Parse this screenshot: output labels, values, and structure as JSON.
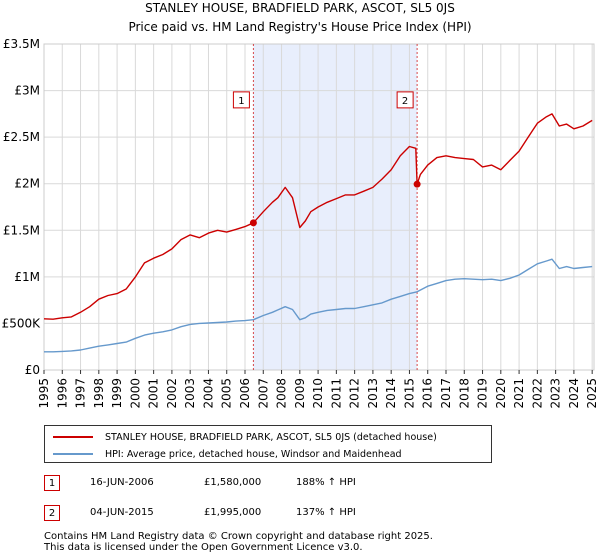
{
  "chart_data": {
    "type": "line",
    "title": "STANLEY HOUSE, BRADFIELD PARK, ASCOT, SL5 0JS",
    "subtitle": "Price paid vs. HM Land Registry's House Price Index (HPI)",
    "xlim": [
      1995,
      2025.1
    ],
    "ylim": [
      0,
      3500000
    ],
    "y_ticks": [
      {
        "value": 0,
        "label": "£0"
      },
      {
        "value": 500000,
        "label": "£500K"
      },
      {
        "value": 1000000,
        "label": "£1M"
      },
      {
        "value": 1500000,
        "label": "£1.5M"
      },
      {
        "value": 2000000,
        "label": "£2M"
      },
      {
        "value": 2500000,
        "label": "£2.5M"
      },
      {
        "value": 3000000,
        "label": "£3M"
      },
      {
        "value": 3500000,
        "label": "£3.5M"
      }
    ],
    "x_ticks": [
      "1995",
      "1996",
      "1997",
      "1998",
      "1999",
      "2000",
      "2001",
      "2002",
      "2003",
      "2004",
      "2005",
      "2006",
      "2007",
      "2008",
      "2009",
      "2010",
      "2011",
      "2012",
      "2013",
      "2014",
      "2015",
      "2016",
      "2017",
      "2018",
      "2019",
      "2020",
      "2021",
      "2022",
      "2023",
      "2024",
      "2025"
    ],
    "shaded_region": [
      2006.46,
      2015.42
    ],
    "series": [
      {
        "name": "STANLEY HOUSE, BRADFIELD PARK, ASCOT, SL5 0JS (detached house)",
        "color": "#cc0000",
        "x": [
          1995.0,
          1995.5,
          1996.0,
          1996.5,
          1997.0,
          1997.5,
          1998.0,
          1998.5,
          1999.0,
          1999.5,
          2000.0,
          2000.5,
          2001.0,
          2001.5,
          2002.0,
          2002.5,
          2003.0,
          2003.5,
          2004.0,
          2004.5,
          2005.0,
          2005.5,
          2006.0,
          2006.46,
          2007.0,
          2007.5,
          2007.8,
          2008.2,
          2008.6,
          2009.0,
          2009.3,
          2009.6,
          2010.0,
          2010.5,
          2011.0,
          2011.5,
          2012.0,
          2012.5,
          2013.0,
          2013.5,
          2014.0,
          2014.5,
          2015.0,
          2015.35,
          2015.42,
          2015.6,
          2016.0,
          2016.5,
          2017.0,
          2017.5,
          2018.0,
          2018.5,
          2019.0,
          2019.5,
          2020.0,
          2020.5,
          2021.0,
          2021.5,
          2022.0,
          2022.5,
          2022.8,
          2023.2,
          2023.6,
          2024.0,
          2024.5,
          2025.0
        ],
        "values": [
          550000,
          545000,
          560000,
          570000,
          620000,
          680000,
          760000,
          800000,
          820000,
          870000,
          1000000,
          1150000,
          1200000,
          1240000,
          1300000,
          1400000,
          1450000,
          1420000,
          1470000,
          1500000,
          1480000,
          1510000,
          1540000,
          1580000,
          1700000,
          1800000,
          1850000,
          1960000,
          1850000,
          1530000,
          1600000,
          1700000,
          1750000,
          1800000,
          1840000,
          1880000,
          1880000,
          1920000,
          1960000,
          2050000,
          2150000,
          2300000,
          2400000,
          2380000,
          1995000,
          2100000,
          2200000,
          2280000,
          2300000,
          2280000,
          2270000,
          2260000,
          2180000,
          2200000,
          2150000,
          2250000,
          2350000,
          2500000,
          2650000,
          2720000,
          2750000,
          2620000,
          2640000,
          2590000,
          2620000,
          2680000
        ]
      },
      {
        "name": "HPI: Average price, detached house, Windsor and Maidenhead",
        "color": "#6699cc",
        "x": [
          1995.0,
          1995.5,
          1996.0,
          1996.5,
          1997.0,
          1997.5,
          1998.0,
          1998.5,
          1999.0,
          1999.5,
          2000.0,
          2000.5,
          2001.0,
          2001.5,
          2002.0,
          2002.5,
          2003.0,
          2003.5,
          2004.0,
          2004.5,
          2005.0,
          2005.5,
          2006.0,
          2006.46,
          2007.0,
          2007.5,
          2007.8,
          2008.2,
          2008.6,
          2009.0,
          2009.3,
          2009.6,
          2010.0,
          2010.5,
          2011.0,
          2011.5,
          2012.0,
          2012.5,
          2013.0,
          2013.5,
          2014.0,
          2014.5,
          2015.0,
          2015.42,
          2016.0,
          2016.5,
          2017.0,
          2017.5,
          2018.0,
          2018.5,
          2019.0,
          2019.5,
          2020.0,
          2020.5,
          2021.0,
          2021.5,
          2022.0,
          2022.5,
          2022.8,
          2023.2,
          2023.6,
          2024.0,
          2024.5,
          2025.0
        ],
        "values": [
          195000,
          195000,
          200000,
          205000,
          215000,
          235000,
          255000,
          270000,
          285000,
          300000,
          340000,
          375000,
          395000,
          410000,
          430000,
          465000,
          490000,
          500000,
          505000,
          510000,
          515000,
          525000,
          530000,
          540000,
          585000,
          620000,
          645000,
          680000,
          650000,
          540000,
          560000,
          600000,
          620000,
          640000,
          650000,
          660000,
          660000,
          680000,
          700000,
          720000,
          760000,
          790000,
          820000,
          840000,
          900000,
          930000,
          960000,
          975000,
          980000,
          975000,
          970000,
          975000,
          960000,
          985000,
          1020000,
          1080000,
          1140000,
          1170000,
          1190000,
          1090000,
          1110000,
          1090000,
          1100000,
          1110000
        ]
      }
    ],
    "sales": [
      {
        "id": "1",
        "x": 2006.46,
        "value": 1580000
      },
      {
        "id": "2",
        "x": 2015.42,
        "value": 1995000
      }
    ]
  },
  "legend": {
    "property_label": "STANLEY HOUSE, BRADFIELD PARK, ASCOT, SL5 0JS (detached house)",
    "hpi_label": "HPI: Average price, detached house, Windsor and Maidenhead"
  },
  "sales_table": [
    {
      "num": "1",
      "date": "16-JUN-2006",
      "price": "£1,580,000",
      "hpi": "188% ↑ HPI"
    },
    {
      "num": "2",
      "date": "04-JUN-2015",
      "price": "£1,995,000",
      "hpi": "137% ↑ HPI"
    }
  ],
  "footer": {
    "line1": "Contains HM Land Registry data © Crown copyright and database right 2025.",
    "line2": "This data is licensed under the Open Government Licence v3.0."
  }
}
